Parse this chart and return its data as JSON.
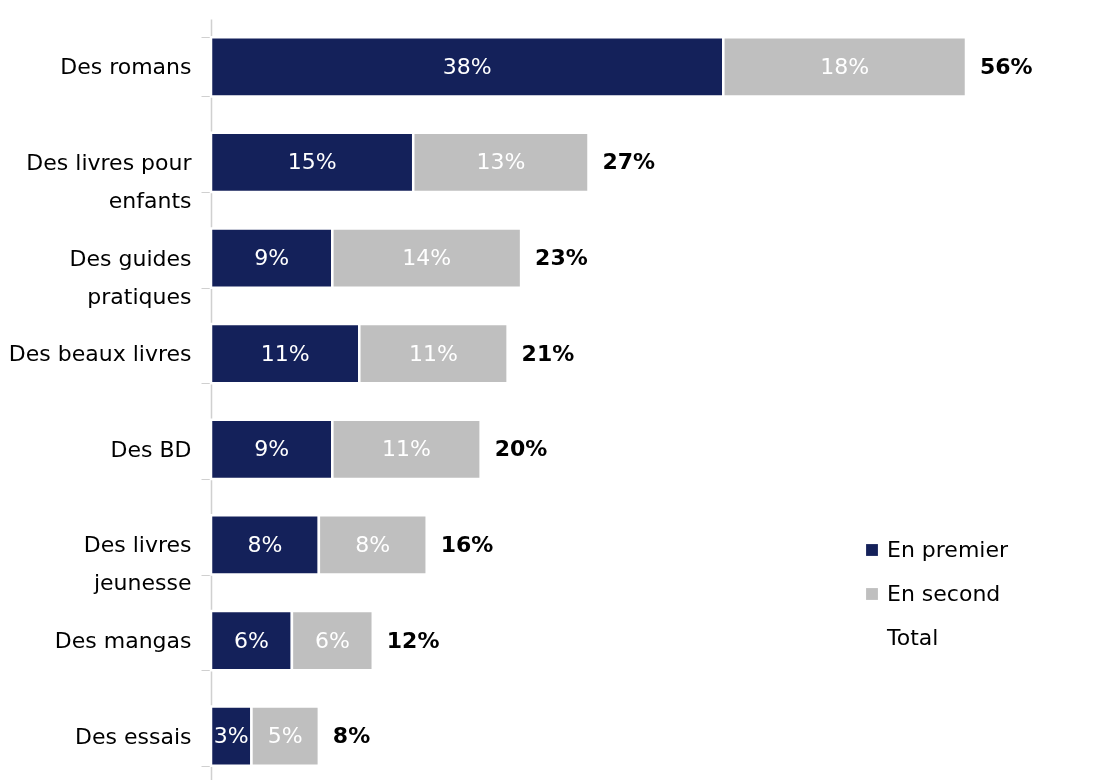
{
  "chart_data": {
    "type": "bar",
    "orientation": "horizontal",
    "stacked": true,
    "legend": "bottom right",
    "tick_labels": "y",
    "categories": [
      "Des romans",
      "Des livres pour enfants",
      "Des guides pratiques",
      "Des beaux livres",
      "Des BD",
      "Des livres jeunesse",
      "Des mangas",
      "Des essais"
    ],
    "series": [
      {
        "name": "En premier",
        "color": "#14215a",
        "values": [
          38,
          15,
          9,
          11,
          9,
          8,
          6,
          3
        ],
        "value_labels": [
          "38%",
          "15%",
          "9%",
          "11%",
          "9%",
          "8%",
          "6%",
          "3%"
        ]
      },
      {
        "name": "En second",
        "color": "#bfbfbf",
        "values": [
          18,
          13,
          14,
          11,
          11,
          8,
          6,
          5
        ],
        "value_labels": [
          "18%",
          "13%",
          "14%",
          "11%",
          "11%",
          "8%",
          "6%",
          "5%"
        ]
      }
    ],
    "totals": [
      "56%",
      "27%",
      "23%",
      "21%",
      "20%",
      "16%",
      "12%",
      "8%"
    ],
    "annotations": [
      "Total"
    ]
  }
}
